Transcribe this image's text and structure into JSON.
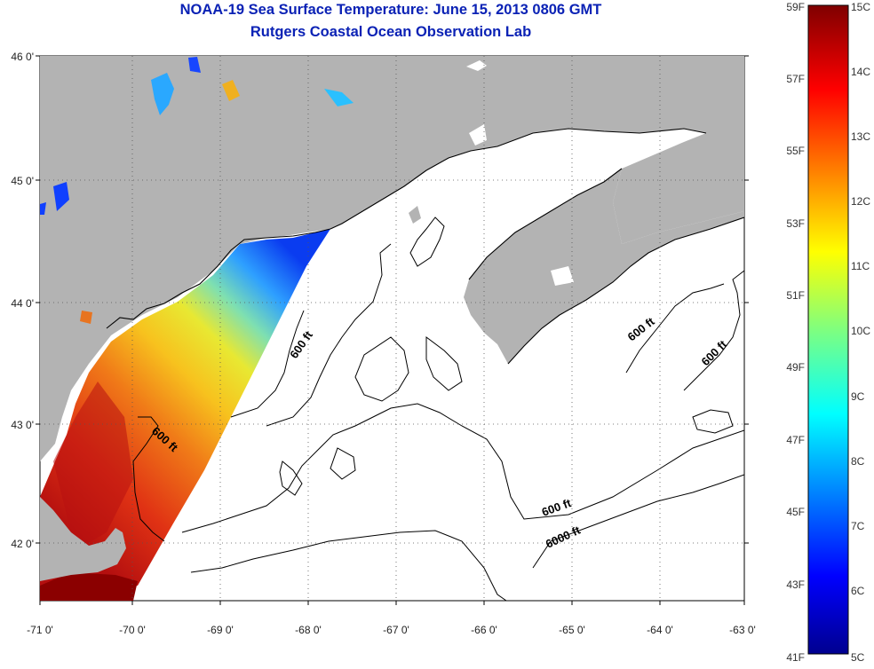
{
  "title": "NOAA-19 Sea Surface Temperature:  June 15, 2013 0806 GMT",
  "subtitle": "Rutgers Coastal Ocean Observation Lab",
  "longitude_ticks": [
    "-71 0'",
    "-70 0'",
    "-69 0'",
    "-68 0'",
    "-67 0'",
    "-66 0'",
    "-65 0'",
    "-64 0'",
    "-63 0'"
  ],
  "latitude_ticks": [
    "46 0'",
    "45 0'",
    "44 0'",
    "43 0'",
    "42 0'"
  ],
  "colorbar": {
    "fahrenheit": [
      "59F",
      "57F",
      "55F",
      "53F",
      "51F",
      "49F",
      "47F",
      "45F",
      "43F",
      "41F"
    ],
    "celsius": [
      "15C",
      "14C",
      "13C",
      "12C",
      "11C",
      "10C",
      "9C",
      "8C",
      "7C",
      "6C",
      "5C"
    ]
  },
  "contour_labels": [
    {
      "text": "600 ft"
    },
    {
      "text": "600 ft"
    },
    {
      "text": "600 ft"
    },
    {
      "text": "600 ft"
    },
    {
      "text": "600 ft"
    },
    {
      "text": "6000 ft"
    }
  ],
  "colors": {
    "land": "#b3b3b3",
    "title": "#0b22b5",
    "warm": "#c80000",
    "cold": "#00008f"
  }
}
